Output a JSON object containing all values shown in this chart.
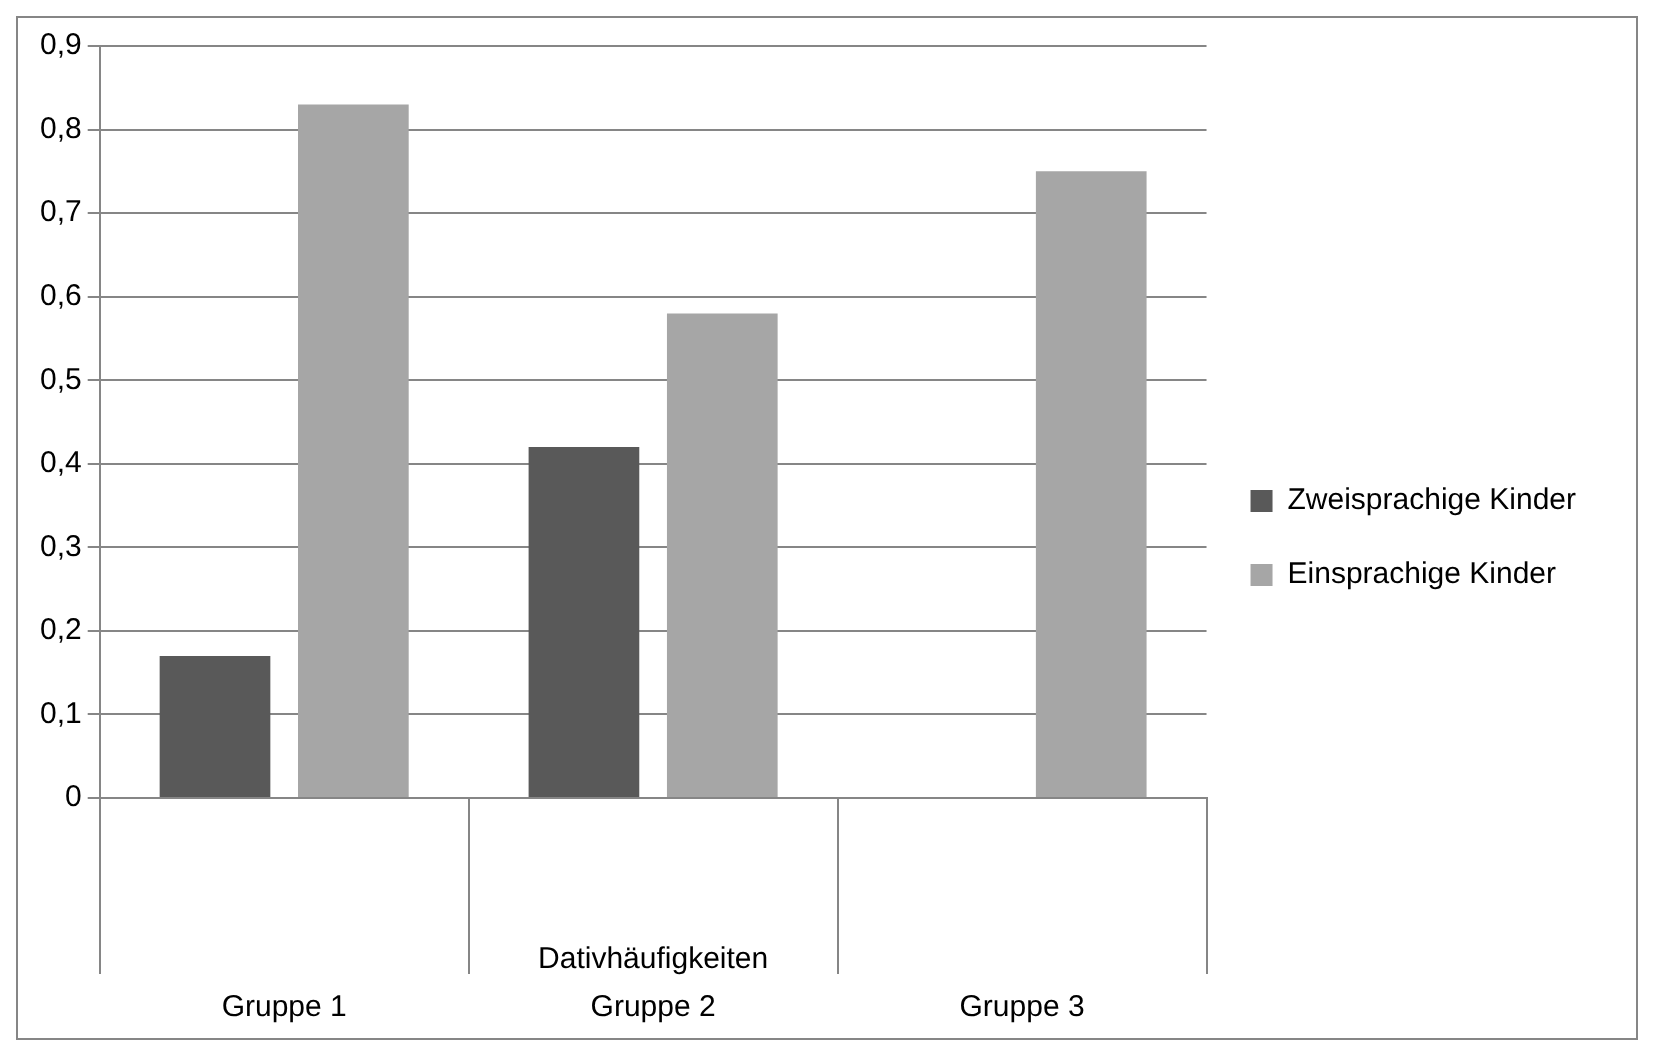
{
  "chart_data": {
    "type": "bar",
    "xlabel": "Dativhäufigkeiten",
    "categories": [
      "Gruppe 1",
      "Gruppe 2",
      "Gruppe 3"
    ],
    "series": [
      {
        "name": "Zweisprachige Kinder",
        "color": "#595959",
        "values": [
          0.17,
          0.42,
          null
        ]
      },
      {
        "name": "Einsprachige Kinder",
        "color": "#a6a6a6",
        "values": [
          0.83,
          0.58,
          0.75
        ]
      }
    ],
    "ylim": [
      0,
      0.9
    ],
    "yticks": [
      0,
      {
        "value": 0.1,
        "label": "0,1"
      },
      {
        "value": 0.2,
        "label": "0,2"
      },
      {
        "value": 0.3,
        "label": "0,3"
      },
      {
        "value": 0.4,
        "label": "0,4"
      },
      {
        "value": 0.5,
        "label": "0,5"
      },
      {
        "value": 0.6,
        "label": "0,6"
      },
      {
        "value": 0.7,
        "label": "0,7"
      },
      {
        "value": 0.8,
        "label": "0,8"
      },
      {
        "value": 0.9,
        "label": "0,9"
      }
    ],
    "grid": "y",
    "legend": "right"
  }
}
